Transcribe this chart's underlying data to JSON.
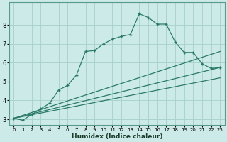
{
  "xlabel": "Humidex (Indice chaleur)",
  "background_color": "#cceae8",
  "grid_color": "#aad4d0",
  "line_color": "#2a7a6a",
  "xlim": [
    -0.5,
    23.5
  ],
  "ylim": [
    2.7,
    9.2
  ],
  "xticks": [
    0,
    1,
    2,
    3,
    4,
    5,
    6,
    7,
    8,
    9,
    10,
    11,
    12,
    13,
    14,
    15,
    16,
    17,
    18,
    19,
    20,
    21,
    22,
    23
  ],
  "yticks": [
    3,
    4,
    5,
    6,
    7,
    8
  ],
  "lines": [
    {
      "x": [
        0,
        1,
        2,
        3,
        4,
        5,
        6,
        7,
        8,
        9,
        10,
        11,
        12,
        13,
        14,
        15,
        16,
        17,
        18,
        19,
        20,
        21,
        22,
        23
      ],
      "y": [
        3.05,
        2.95,
        3.25,
        3.55,
        3.85,
        4.55,
        4.8,
        5.35,
        6.6,
        6.65,
        7.0,
        7.25,
        7.4,
        7.5,
        8.6,
        8.4,
        8.05,
        8.05,
        7.1,
        6.55,
        6.55,
        5.95,
        5.7,
        5.75
      ]
    },
    {
      "x": [
        0,
        23
      ],
      "y": [
        3.05,
        6.6
      ]
    },
    {
      "x": [
        0,
        23
      ],
      "y": [
        3.05,
        5.75
      ]
    },
    {
      "x": [
        0,
        23
      ],
      "y": [
        3.05,
        5.2
      ]
    }
  ]
}
